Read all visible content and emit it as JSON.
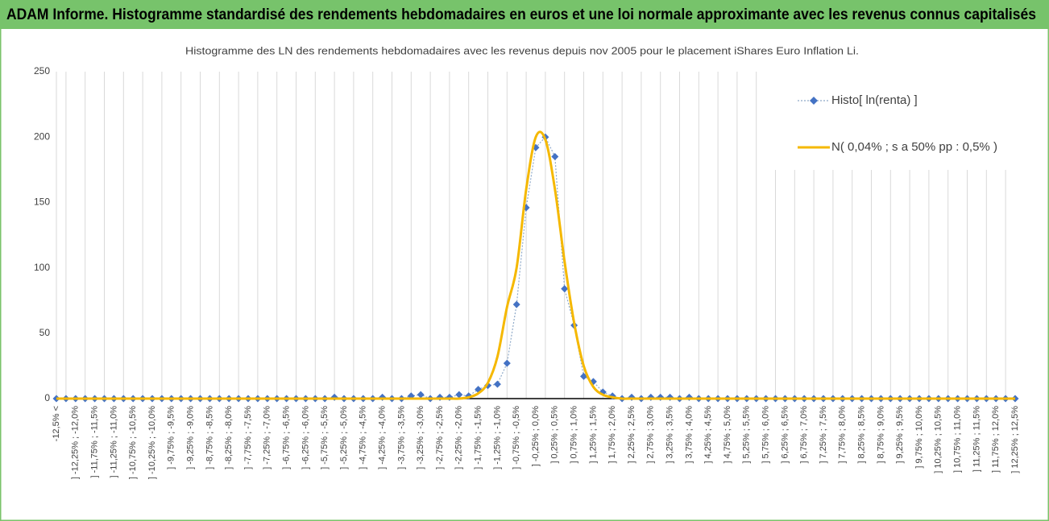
{
  "header": {
    "title": "ADAM Informe. Histogramme standardisé des rendements hebdomadaires en euros et une loi normale approximante avec les revenus connus capitalisés"
  },
  "chart_data": {
    "type": "line",
    "title": "Histogramme des LN des rendements hebdomadaires avec les revenus depuis nov 2005 pour le placement iShares Euro Inflation Li.",
    "categories": [
      "-12,5% <",
      null,
      "] -12,25% ; -12,0%",
      null,
      "] -11,75% ; -11,5%",
      null,
      "] -11,25% ; -11,0%",
      null,
      "] -10,75% ; -10,5%",
      null,
      "] -10,25% ; -10,0%",
      null,
      "] -9,75% ; -9,5%",
      null,
      "] -9,25% ; -9,0%",
      null,
      "] -8,75% ; -8,5%",
      null,
      "] -8,25% ; -8,0%",
      null,
      "] -7,75% ; -7,5%",
      null,
      "] -7,25% ; -7,0%",
      null,
      "] -6,75% ; -6,5%",
      null,
      "] -6,25% ; -6,0%",
      null,
      "] -5,75% ; -5,5%",
      null,
      "] -5,25% ; -5,0%",
      null,
      "] -4,75% ; -4,5%",
      null,
      "] -4,25% ; -4,0%",
      null,
      "] -3,75% ; -3,5%",
      null,
      "] -3,25% ; -3,0%",
      null,
      "] -2,75% ; -2,5%",
      null,
      "] -2,25% ; -2,0%",
      null,
      "] -1,75% ; -1,5%",
      null,
      "] -1,25% ; -1,0%",
      null,
      "] -0,75% ; -0,5%",
      null,
      "] -0,25% ; 0,0%",
      null,
      "] 0,25% ; 0,5%",
      null,
      "] 0,75% ; 1,0%",
      null,
      "] 1,25% ; 1,5%",
      null,
      "] 1,75% ; 2,0%",
      null,
      "] 2,25% ; 2,5%",
      null,
      "] 2,75% ; 3,0%",
      null,
      "] 3,25% ; 3,5%",
      null,
      "] 3,75% ; 4,0%",
      null,
      "] 4,25% ; 4,5%",
      null,
      "] 4,75% ; 5,0%",
      null,
      "] 5,25% ; 5,5%",
      null,
      "] 5,75% ; 6,0%",
      null,
      "] 6,25% ; 6,5%",
      null,
      "] 6,75% ; 7,0%",
      null,
      "] 7,25% ; 7,5%",
      null,
      "] 7,75% ; 8,0%",
      null,
      "] 8,25% ; 8,5%",
      null,
      "] 8,75% ; 9,0%",
      null,
      "] 9,25% ; 9,5%",
      null,
      "] 9,75% ; 10,0%",
      null,
      "] 10,25% ; 10,5%",
      null,
      "] 10,75% ; 11,0%",
      null,
      "] 11,25% ; 11,5%",
      null,
      "] 11,75% ; 12,0%",
      null,
      "] 12,25% ; 12,5%"
    ],
    "series": [
      {
        "name": "Histo[ ln(renta) ]",
        "color": "#4472c4",
        "line_color": "#8ea9c8",
        "marker": "diamond",
        "values": [
          0,
          0,
          0,
          0,
          0,
          0,
          0,
          0,
          0,
          0,
          0,
          0,
          0,
          0,
          0,
          0,
          0,
          0,
          0,
          0,
          0,
          0,
          0,
          0,
          0,
          0,
          0,
          0,
          0,
          1,
          0,
          0,
          0,
          0,
          1,
          0,
          0,
          2,
          3,
          0,
          1,
          1,
          3,
          2,
          7,
          10,
          11,
          27,
          72,
          146,
          192,
          200,
          185,
          84,
          56,
          17,
          13,
          5,
          2,
          0,
          1,
          0,
          1,
          1,
          1,
          0,
          1,
          0,
          0,
          0,
          0,
          0,
          0,
          0,
          0,
          0,
          0,
          0,
          0,
          0,
          0,
          0,
          0,
          0,
          0,
          0,
          0,
          0,
          0,
          0,
          0,
          0,
          0,
          0,
          0,
          0,
          0,
          0,
          0,
          0,
          0
        ]
      },
      {
        "name": "N( 0,04% ; s a 50% pp : 0,5% )",
        "color": "#f5b800",
        "values": [
          0,
          0,
          0,
          0,
          0,
          0,
          0,
          0,
          0,
          0,
          0,
          0,
          0,
          0,
          0,
          0,
          0,
          0,
          0,
          0,
          0,
          0,
          0,
          0,
          0,
          0,
          0,
          0,
          0,
          0,
          0,
          0,
          0,
          0,
          0,
          0,
          0,
          0,
          0,
          0,
          0,
          0,
          0,
          1,
          4,
          12,
          32,
          70,
          100,
          160,
          200,
          198,
          160,
          105,
          58,
          25,
          9,
          3,
          1,
          0,
          0,
          0,
          0,
          0,
          0,
          0,
          0,
          0,
          0,
          0,
          0,
          0,
          0,
          0,
          0,
          0,
          0,
          0,
          0,
          0,
          0,
          0,
          0,
          0,
          0,
          0,
          0,
          0,
          0,
          0,
          0,
          0,
          0,
          0,
          0,
          0,
          0,
          0,
          0,
          0,
          0
        ]
      }
    ],
    "ylim": [
      0,
      250
    ],
    "yticks": [
      0,
      50,
      100,
      150,
      200,
      250
    ],
    "grid": "x",
    "legend": "top-right"
  }
}
